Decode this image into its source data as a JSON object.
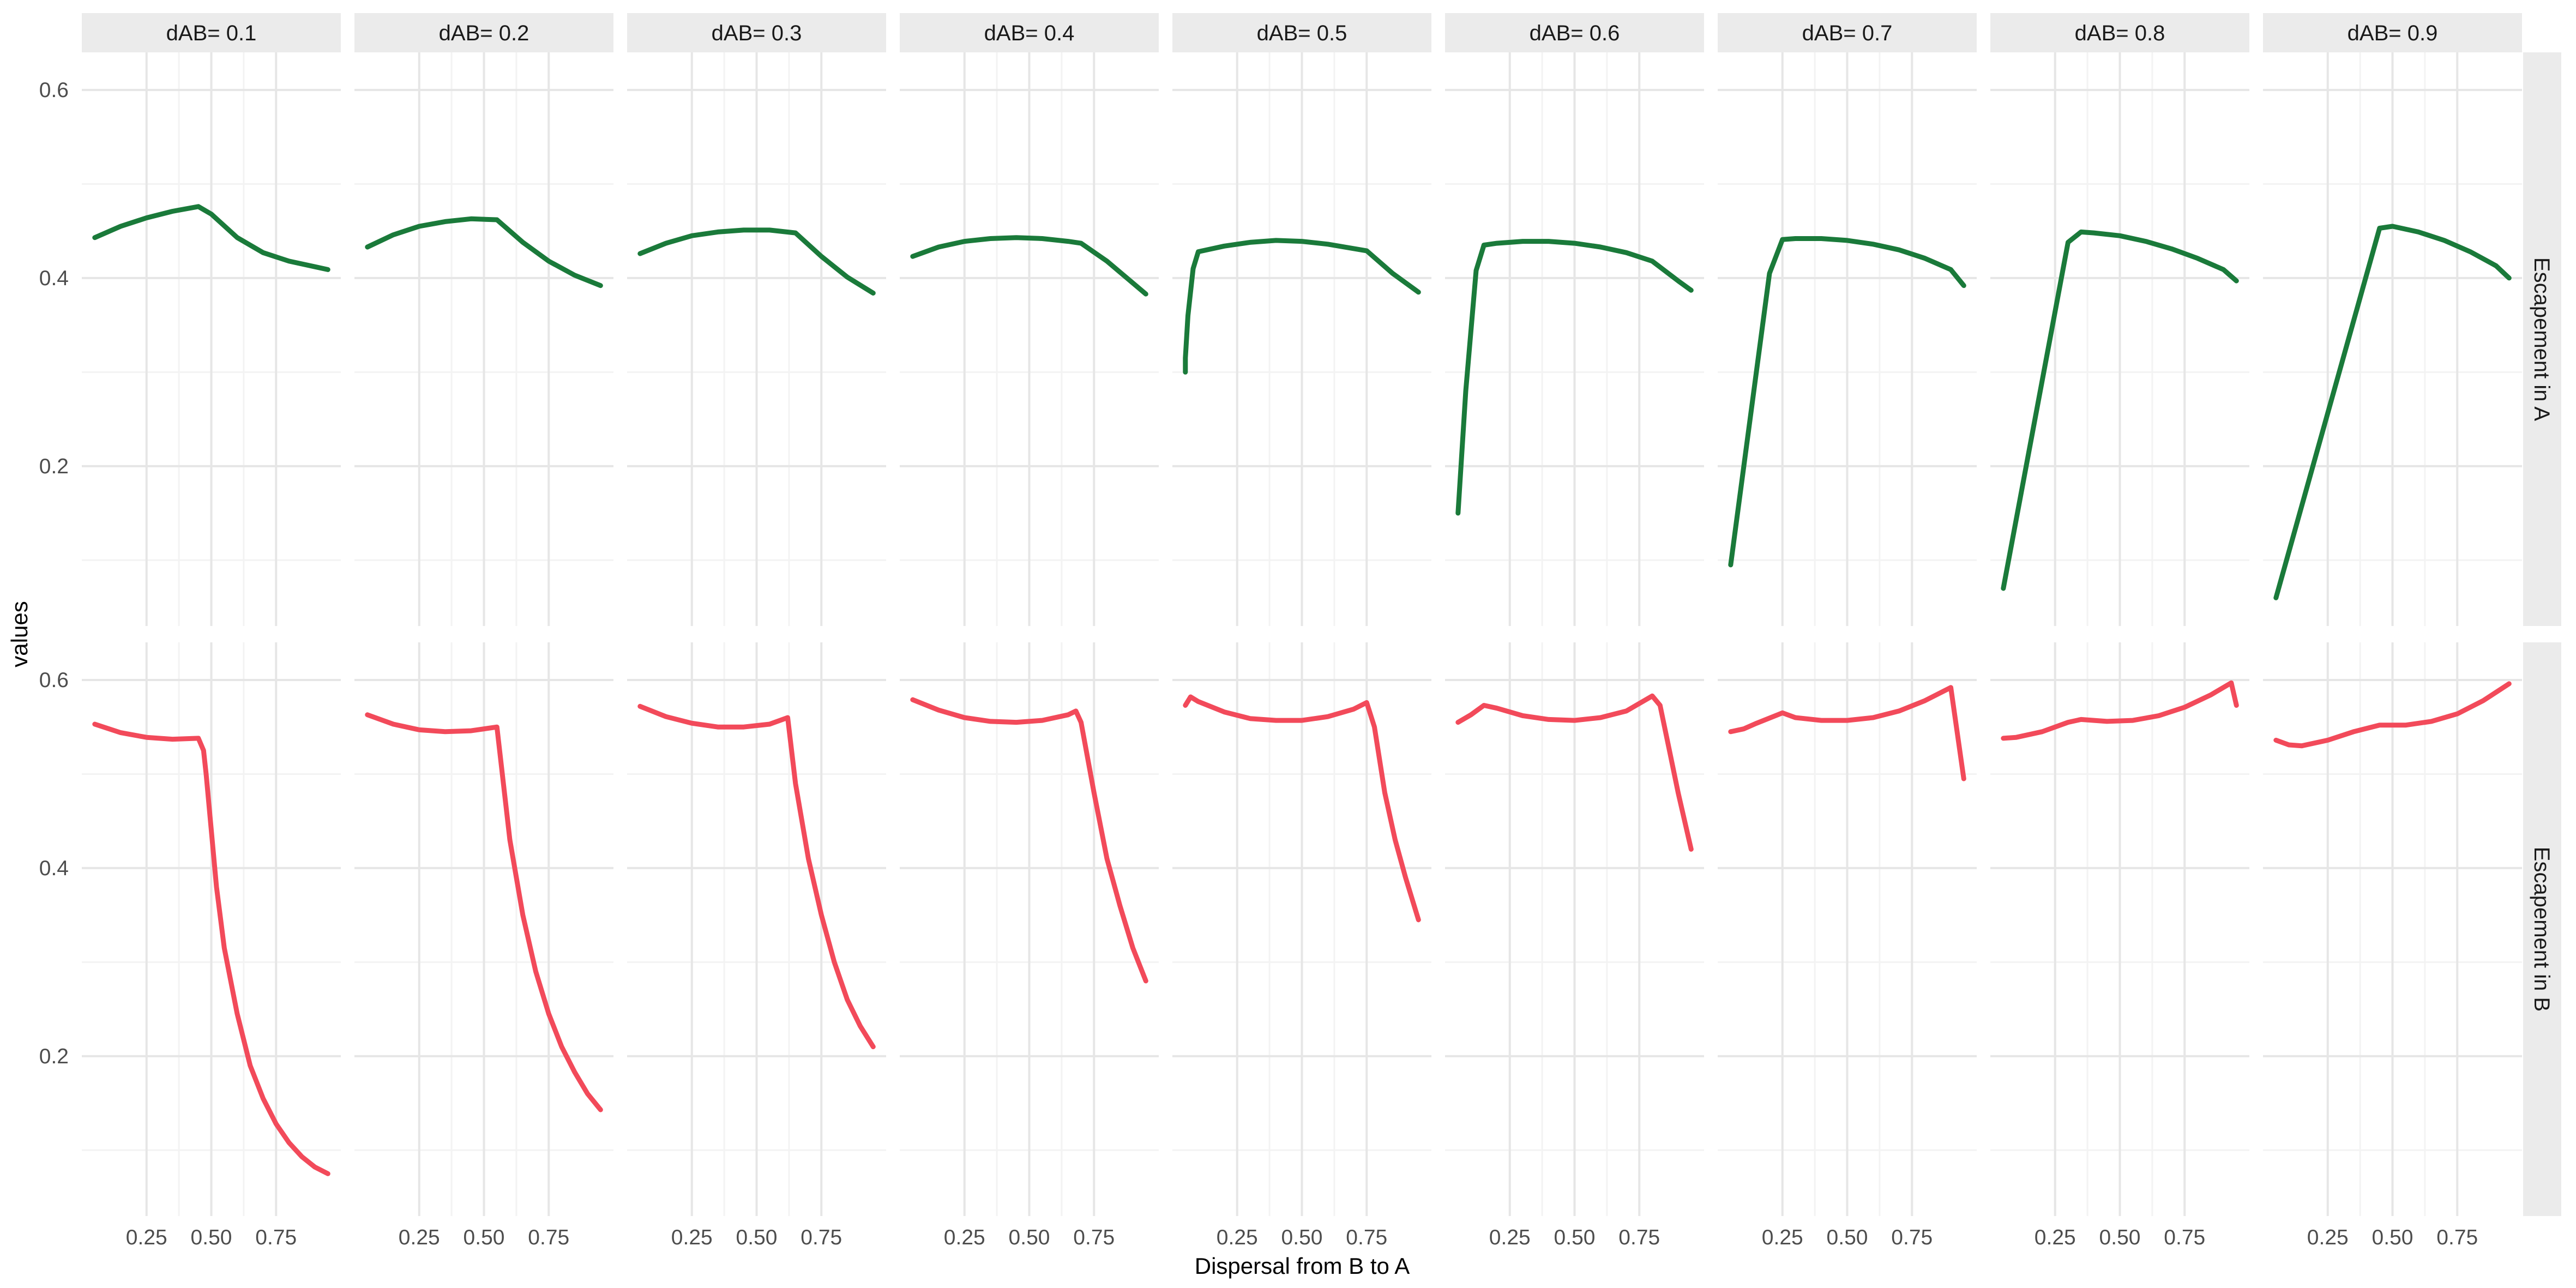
{
  "chart_data": {
    "type": "line",
    "title": "",
    "xlabel": "Dispersal from B to A",
    "ylabel": "values",
    "xlim": [
      0.0,
      1.0
    ],
    "ylim": [
      0.03,
      0.64
    ],
    "x_ticks": [
      0.25,
      0.5,
      0.75
    ],
    "x_tick_labels": [
      "0.25",
      "0.50",
      "0.75"
    ],
    "y_ticks": [
      0.2,
      0.4,
      0.6
    ],
    "y_tick_labels": [
      "0.2",
      "0.4",
      "0.6"
    ],
    "grid": true,
    "legend": "none",
    "facet_columns": [
      "dAB=  0.1",
      "dAB=  0.2",
      "dAB=  0.3",
      "dAB=  0.4",
      "dAB=  0.5",
      "dAB=  0.6",
      "dAB=  0.7",
      "dAB=  0.8",
      "dAB=  0.9"
    ],
    "facet_rows": [
      "Escapement in A",
      "Escapement in B"
    ],
    "series_colors": {
      "Escapement in A": "#1a7a3a",
      "Escapement in B": "#f24a5a"
    },
    "panels": [
      {
        "row": 0,
        "col": 0,
        "x": [
          0.05,
          0.15,
          0.25,
          0.35,
          0.45,
          0.5,
          0.6,
          0.7,
          0.8,
          0.9,
          0.95
        ],
        "y": [
          0.443,
          0.455,
          0.464,
          0.471,
          0.476,
          0.468,
          0.443,
          0.427,
          0.418,
          0.412,
          0.409
        ]
      },
      {
        "row": 0,
        "col": 1,
        "x": [
          0.05,
          0.15,
          0.25,
          0.35,
          0.45,
          0.55,
          0.65,
          0.75,
          0.85,
          0.95
        ],
        "y": [
          0.433,
          0.446,
          0.455,
          0.46,
          0.463,
          0.462,
          0.438,
          0.418,
          0.403,
          0.392
        ]
      },
      {
        "row": 0,
        "col": 2,
        "x": [
          0.05,
          0.15,
          0.25,
          0.35,
          0.45,
          0.55,
          0.65,
          0.75,
          0.85,
          0.95
        ],
        "y": [
          0.426,
          0.437,
          0.445,
          0.449,
          0.451,
          0.451,
          0.448,
          0.423,
          0.401,
          0.384
        ]
      },
      {
        "row": 0,
        "col": 3,
        "x": [
          0.05,
          0.15,
          0.25,
          0.35,
          0.45,
          0.55,
          0.65,
          0.7,
          0.8,
          0.95
        ],
        "y": [
          0.423,
          0.433,
          0.439,
          0.442,
          0.443,
          0.442,
          0.439,
          0.437,
          0.418,
          0.383
        ]
      },
      {
        "row": 0,
        "col": 4,
        "x": [
          0.05,
          0.05,
          0.06,
          0.08,
          0.1,
          0.2,
          0.3,
          0.4,
          0.5,
          0.6,
          0.75,
          0.85,
          0.95
        ],
        "y": [
          0.3,
          0.315,
          0.36,
          0.41,
          0.428,
          0.434,
          0.438,
          0.44,
          0.439,
          0.436,
          0.429,
          0.405,
          0.385
        ]
      },
      {
        "row": 0,
        "col": 5,
        "x": [
          0.05,
          0.08,
          0.12,
          0.15,
          0.2,
          0.3,
          0.4,
          0.5,
          0.6,
          0.7,
          0.8,
          0.9,
          0.95
        ],
        "y": [
          0.15,
          0.28,
          0.408,
          0.435,
          0.437,
          0.439,
          0.439,
          0.437,
          0.433,
          0.427,
          0.418,
          0.397,
          0.387
        ]
      },
      {
        "row": 0,
        "col": 6,
        "x": [
          0.05,
          0.2,
          0.25,
          0.3,
          0.4,
          0.5,
          0.6,
          0.7,
          0.8,
          0.9,
          0.95
        ],
        "y": [
          0.095,
          0.405,
          0.441,
          0.442,
          0.442,
          0.44,
          0.436,
          0.43,
          0.421,
          0.409,
          0.392
        ]
      },
      {
        "row": 0,
        "col": 7,
        "x": [
          0.05,
          0.3,
          0.35,
          0.4,
          0.5,
          0.6,
          0.7,
          0.8,
          0.9,
          0.95
        ],
        "y": [
          0.07,
          0.438,
          0.449,
          0.448,
          0.445,
          0.439,
          0.431,
          0.421,
          0.409,
          0.397
        ]
      },
      {
        "row": 0,
        "col": 8,
        "x": [
          0.05,
          0.45,
          0.5,
          0.6,
          0.7,
          0.8,
          0.9,
          0.95
        ],
        "y": [
          0.06,
          0.453,
          0.455,
          0.449,
          0.44,
          0.428,
          0.413,
          0.4
        ]
      },
      {
        "row": 1,
        "col": 0,
        "x": [
          0.05,
          0.15,
          0.25,
          0.35,
          0.45,
          0.47,
          0.48,
          0.5,
          0.52,
          0.55,
          0.6,
          0.65,
          0.7,
          0.75,
          0.8,
          0.85,
          0.9,
          0.95
        ],
        "y": [
          0.553,
          0.544,
          0.539,
          0.537,
          0.538,
          0.525,
          0.5,
          0.44,
          0.38,
          0.315,
          0.245,
          0.19,
          0.155,
          0.128,
          0.108,
          0.093,
          0.082,
          0.075
        ]
      },
      {
        "row": 1,
        "col": 1,
        "x": [
          0.05,
          0.15,
          0.25,
          0.35,
          0.45,
          0.55,
          0.6,
          0.65,
          0.7,
          0.75,
          0.8,
          0.85,
          0.9,
          0.95
        ],
        "y": [
          0.563,
          0.553,
          0.547,
          0.545,
          0.546,
          0.55,
          0.43,
          0.35,
          0.29,
          0.245,
          0.21,
          0.183,
          0.16,
          0.143
        ]
      },
      {
        "row": 1,
        "col": 2,
        "x": [
          0.05,
          0.15,
          0.25,
          0.35,
          0.45,
          0.55,
          0.62,
          0.65,
          0.7,
          0.75,
          0.8,
          0.85,
          0.9,
          0.95
        ],
        "y": [
          0.572,
          0.561,
          0.554,
          0.55,
          0.55,
          0.553,
          0.56,
          0.49,
          0.41,
          0.35,
          0.3,
          0.26,
          0.232,
          0.21
        ]
      },
      {
        "row": 1,
        "col": 3,
        "x": [
          0.05,
          0.15,
          0.25,
          0.35,
          0.45,
          0.55,
          0.65,
          0.68,
          0.7,
          0.75,
          0.8,
          0.85,
          0.9,
          0.95
        ],
        "y": [
          0.579,
          0.568,
          0.56,
          0.556,
          0.555,
          0.557,
          0.563,
          0.567,
          0.555,
          0.48,
          0.41,
          0.36,
          0.315,
          0.28
        ]
      },
      {
        "row": 1,
        "col": 4,
        "x": [
          0.05,
          0.07,
          0.1,
          0.2,
          0.3,
          0.4,
          0.5,
          0.6,
          0.7,
          0.75,
          0.78,
          0.82,
          0.86,
          0.9,
          0.95
        ],
        "y": [
          0.573,
          0.582,
          0.577,
          0.566,
          0.559,
          0.557,
          0.557,
          0.561,
          0.569,
          0.576,
          0.55,
          0.48,
          0.43,
          0.39,
          0.345
        ]
      },
      {
        "row": 1,
        "col": 5,
        "x": [
          0.05,
          0.1,
          0.15,
          0.2,
          0.3,
          0.4,
          0.5,
          0.6,
          0.7,
          0.8,
          0.83,
          0.87,
          0.9,
          0.95
        ],
        "y": [
          0.555,
          0.563,
          0.573,
          0.57,
          0.562,
          0.558,
          0.557,
          0.56,
          0.567,
          0.583,
          0.573,
          0.52,
          0.48,
          0.42
        ]
      },
      {
        "row": 1,
        "col": 6,
        "x": [
          0.05,
          0.1,
          0.15,
          0.25,
          0.3,
          0.4,
          0.5,
          0.6,
          0.7,
          0.8,
          0.9,
          0.95
        ],
        "y": [
          0.545,
          0.548,
          0.554,
          0.565,
          0.56,
          0.557,
          0.557,
          0.56,
          0.567,
          0.578,
          0.592,
          0.495
        ]
      },
      {
        "row": 1,
        "col": 7,
        "x": [
          0.05,
          0.1,
          0.2,
          0.3,
          0.35,
          0.45,
          0.55,
          0.65,
          0.75,
          0.85,
          0.93,
          0.95
        ],
        "y": [
          0.538,
          0.539,
          0.545,
          0.555,
          0.558,
          0.556,
          0.557,
          0.562,
          0.571,
          0.584,
          0.597,
          0.573
        ]
      },
      {
        "row": 1,
        "col": 8,
        "x": [
          0.05,
          0.1,
          0.15,
          0.25,
          0.35,
          0.45,
          0.55,
          0.65,
          0.75,
          0.85,
          0.95
        ],
        "y": [
          0.536,
          0.531,
          0.53,
          0.536,
          0.545,
          0.552,
          0.552,
          0.556,
          0.564,
          0.578,
          0.596
        ]
      }
    ]
  }
}
